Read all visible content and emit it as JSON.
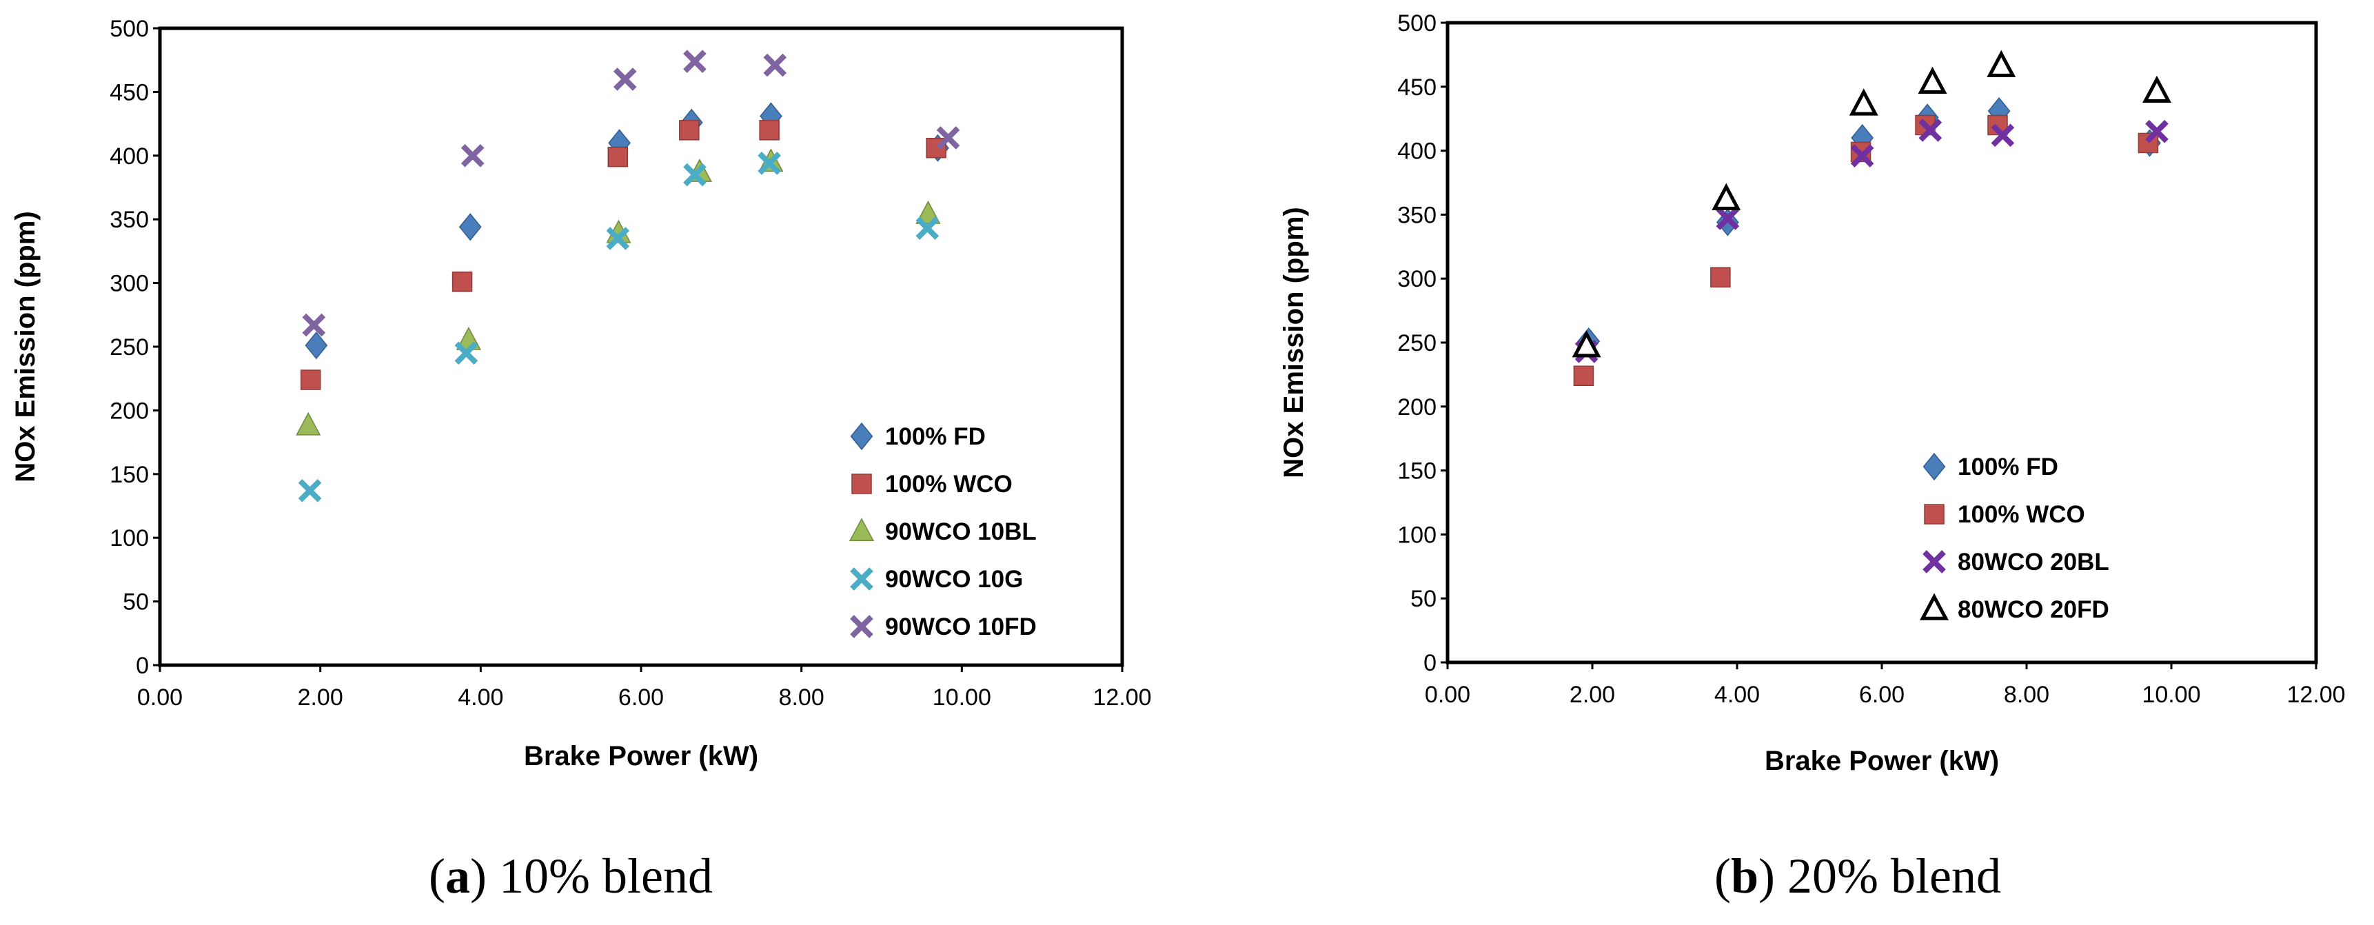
{
  "captions": [
    {
      "letter": "a",
      "text": " 10% blend"
    },
    {
      "letter": "b",
      "text": " 20% blend"
    }
  ],
  "chart_data": [
    {
      "type": "scatter",
      "xlabel": "Brake Power (kW)",
      "ylabel": "NOx Emission (ppm)",
      "xlim": [
        0,
        12
      ],
      "ylim": [
        0,
        500
      ],
      "xticks": [
        "0.00",
        "2.00",
        "4.00",
        "6.00",
        "8.00",
        "10.00",
        "12.00"
      ],
      "yticks": [
        "0",
        "50",
        "100",
        "150",
        "200",
        "250",
        "300",
        "350",
        "400",
        "450",
        "500"
      ],
      "grid": false,
      "legend_position": "bottom-right",
      "series": [
        {
          "name": "100% FD",
          "marker": "diamond",
          "color": "#4A7EBB",
          "x": [
            1.95,
            3.87,
            5.73,
            6.63,
            7.62,
            9.7
          ],
          "y": [
            251,
            344,
            410,
            426,
            431,
            406
          ]
        },
        {
          "name": "100% WCO",
          "marker": "square",
          "color": "#C0504D",
          "x": [
            1.88,
            3.77,
            5.71,
            6.6,
            7.6,
            9.68
          ],
          "y": [
            224,
            301,
            399,
            420,
            420,
            406
          ]
        },
        {
          "name": "90WCO 10BL",
          "marker": "triangle",
          "color": "#9BBB59",
          "x": [
            1.85,
            3.85,
            5.72,
            6.73,
            7.62,
            9.58
          ],
          "y": [
            188,
            255,
            339,
            387,
            395,
            354
          ]
        },
        {
          "name": "90WCO 10G",
          "marker": "x",
          "color": "#4BACC6",
          "x": [
            1.87,
            3.82,
            5.71,
            6.67,
            7.6,
            9.57
          ],
          "y": [
            137,
            245,
            335,
            385,
            394,
            343
          ]
        },
        {
          "name": "90WCO 10FD",
          "marker": "x",
          "color": "#8064A2",
          "x": [
            1.92,
            3.9,
            5.8,
            6.67,
            7.67,
            9.83
          ],
          "y": [
            267,
            400,
            460,
            474,
            471,
            414
          ]
        }
      ]
    },
    {
      "type": "scatter",
      "xlabel": "Brake Power (kW)",
      "ylabel": "NOx Emission (ppm)",
      "xlim": [
        0,
        12
      ],
      "ylim": [
        0,
        500
      ],
      "xticks": [
        "0.00",
        "2.00",
        "4.00",
        "6.00",
        "8.00",
        "10.00",
        "12.00"
      ],
      "yticks": [
        "0",
        "50",
        "100",
        "150",
        "200",
        "250",
        "300",
        "350",
        "400",
        "450",
        "500"
      ],
      "grid": false,
      "legend_position": "bottom-center",
      "series": [
        {
          "name": "100% FD",
          "marker": "diamond",
          "color": "#4A7EBB",
          "x": [
            1.95,
            3.87,
            5.73,
            6.63,
            7.62,
            9.7
          ],
          "y": [
            251,
            344,
            410,
            426,
            431,
            406
          ]
        },
        {
          "name": "100% WCO",
          "marker": "square",
          "color": "#C0504D",
          "x": [
            1.88,
            3.77,
            5.71,
            6.6,
            7.6,
            9.68
          ],
          "y": [
            224,
            301,
            399,
            420,
            420,
            406
          ]
        },
        {
          "name": "80WCO 20BL",
          "marker": "x",
          "color": "#7030A0",
          "x": [
            1.92,
            3.87,
            5.73,
            6.67,
            7.67,
            9.8
          ],
          "y": [
            243,
            347,
            396,
            416,
            412,
            415
          ]
        },
        {
          "name": "80WCO 20FD",
          "marker": "triangle-open",
          "color": "#000000",
          "x": [
            1.92,
            3.85,
            5.75,
            6.7,
            7.65,
            9.8
          ],
          "y": [
            247,
            362,
            436,
            453,
            466,
            446
          ]
        }
      ]
    }
  ]
}
